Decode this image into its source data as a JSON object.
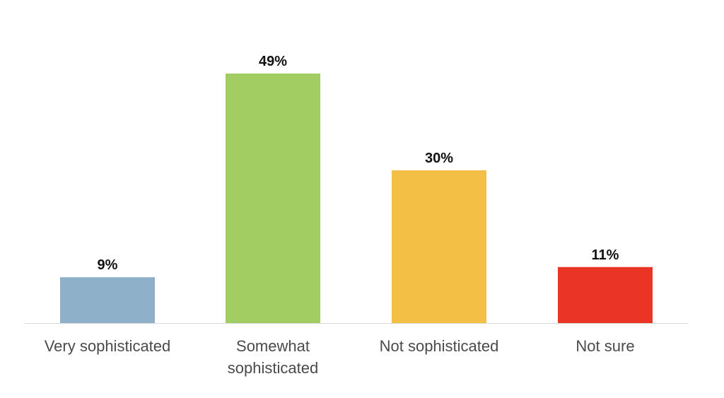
{
  "chart_data": {
    "type": "bar",
    "categories": [
      [
        "Very sophisticated"
      ],
      [
        "Somewhat",
        "sophisticated"
      ],
      [
        "Not sophisticated"
      ],
      [
        "Not sure"
      ]
    ],
    "values": [
      9,
      49,
      30,
      11
    ],
    "value_labels": [
      "9%",
      "49%",
      "30%",
      "11%"
    ],
    "colors": [
      "#8fb0c9",
      "#a1cd63",
      "#f4bf45",
      "#e93426"
    ],
    "axis_color": "#d9d9d9",
    "ylim": [
      0,
      49
    ],
    "grid": false,
    "legend": "none",
    "title": "",
    "xlabel": "",
    "ylabel": ""
  }
}
